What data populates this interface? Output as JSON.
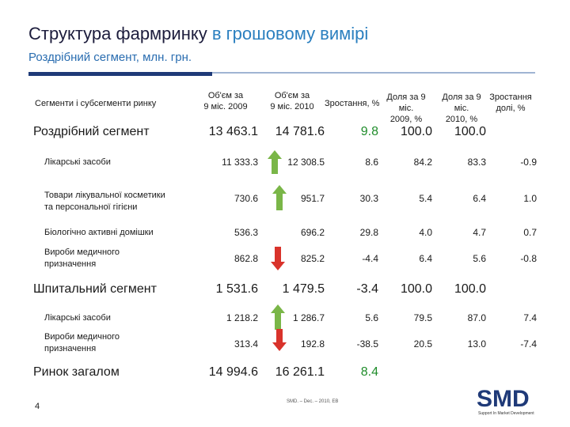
{
  "header": {
    "title_main": "Структура фармринку ",
    "title_highlight": "в грошовому вимірі",
    "subtitle": "Роздрібний сегмент, млн. грн."
  },
  "columns": {
    "segment": "Сегменти і субсегменти ринку",
    "vol2009_l1": "Об'єм за",
    "vol2009_l2": "9 міс. 2009",
    "vol2010_l1": "Об'єм за",
    "vol2010_l2": "9 міс. 2010",
    "growth": "Зростання, %",
    "share2009_l1": "Доля за 9 міс.",
    "share2009_l2": "2009, %",
    "share2010_l1": "Доля за 9 міс.",
    "share2010_l2": "2010, %",
    "share_growth_l1": "Зростання",
    "share_growth_l2": "долі, %"
  },
  "rows": [
    {
      "type": "segment",
      "label": "Роздрібний сегмент",
      "v2009": "13 463.1",
      "v2010": "14 781.6",
      "growth": "9.8",
      "s2009": "100.0",
      "s2010": "100.0",
      "sg": ""
    },
    {
      "type": "sub",
      "label": "Лікарські засоби",
      "v2009": "11 333.3",
      "v2010": "12 308.5",
      "growth": "8.6",
      "s2009": "84.2",
      "s2010": "83.3",
      "sg": "-0.9",
      "arrow": "up"
    },
    {
      "type": "sub",
      "label": "Товари лікувальної косметики та персональної гігієни",
      "label_l1": "Товари лікувальної косметики",
      "label_l2": "та персональної гігієни",
      "v2009": "730.6",
      "v2010": "951.7",
      "growth": "30.3",
      "s2009": "5.4",
      "s2010": "6.4",
      "sg": "1.0",
      "arrow": "up"
    },
    {
      "type": "sub",
      "label": "Біологічно активні домішки",
      "v2009": "536.3",
      "v2010": "696.2",
      "growth": "29.8",
      "s2009": "4.0",
      "s2010": "4.7",
      "sg": "0.7"
    },
    {
      "type": "sub",
      "label_l1": "Вироби медичного",
      "label_l2": "призначення",
      "v2009": "862.8",
      "v2010": "825.2",
      "growth": "-4.4",
      "s2009": "6.4",
      "s2010": "5.6",
      "sg": "-0.8",
      "arrow": "down"
    },
    {
      "type": "segment",
      "label": "Шпитальний сегмент",
      "v2009": "1 531.6",
      "v2010": "1 479.5",
      "growth": "-3.4",
      "s2009": "100.0",
      "s2010": "100.0",
      "sg": ""
    },
    {
      "type": "sub",
      "label": "Лікарські засоби",
      "v2009": "1 218.2",
      "v2010": "1 286.7",
      "growth": "5.6",
      "s2009": "79.5",
      "s2010": "87.0",
      "sg": "7.4",
      "arrow": "up"
    },
    {
      "type": "sub",
      "label_l1": "Вироби медичного",
      "label_l2": "призначення",
      "v2009": "313.4",
      "v2010": "192.8",
      "growth": "-38.5",
      "s2009": "20.5",
      "s2010": "13.0",
      "sg": "-7.4",
      "arrow": "down"
    },
    {
      "type": "segment",
      "label": "Ринок загалом",
      "v2009": "14 994.6",
      "v2010": "16 261.1",
      "growth": "8.4",
      "s2009": "",
      "s2010": "",
      "sg": ""
    }
  ],
  "footer": {
    "page_number": "4",
    "source": "SMD. – Dec. – 2010, EB",
    "logo_text": "SMD",
    "logo_tagline": "Support In Market Development"
  },
  "colors": {
    "arrow_up": "#7ab648",
    "arrow_down": "#d9332b",
    "growth_positive": "#1f8c2a"
  }
}
